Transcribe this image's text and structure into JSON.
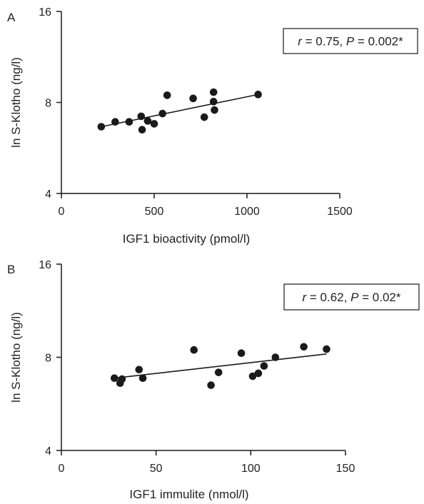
{
  "chart_data": [
    {
      "type": "scatter",
      "panel_label": "A",
      "xlabel": "IGF1 bioactivity (pmol/l)",
      "ylabel": "ln S-Klotho (ng/l)",
      "xlim": [
        0,
        1500
      ],
      "ylim": [
        4,
        16
      ],
      "yscale": "log2",
      "xticks": [
        0,
        500,
        1000,
        1500
      ],
      "xtick_labels": [
        "0",
        "500",
        "1000",
        "1500"
      ],
      "yticks": [
        4,
        8,
        16
      ],
      "ytick_labels": [
        "4",
        "8",
        "16"
      ],
      "annotation": {
        "r_sym": "r",
        "r_rest": " = 0.75, ",
        "p_sym": "P",
        "p_rest": " = 0.002*"
      },
      "grid": false,
      "points": [
        {
          "x": 215,
          "y": 6.65
        },
        {
          "x": 290,
          "y": 6.9
        },
        {
          "x": 365,
          "y": 6.9
        },
        {
          "x": 430,
          "y": 7.2
        },
        {
          "x": 435,
          "y": 6.5
        },
        {
          "x": 465,
          "y": 6.95
        },
        {
          "x": 500,
          "y": 6.8
        },
        {
          "x": 545,
          "y": 7.35
        },
        {
          "x": 570,
          "y": 8.45
        },
        {
          "x": 710,
          "y": 8.25
        },
        {
          "x": 770,
          "y": 7.15
        },
        {
          "x": 820,
          "y": 8.65
        },
        {
          "x": 820,
          "y": 8.05
        },
        {
          "x": 825,
          "y": 7.55
        },
        {
          "x": 1060,
          "y": 8.5
        }
      ],
      "fit_line": {
        "x": [
          215,
          1060
        ],
        "y": [
          6.65,
          8.5
        ]
      }
    },
    {
      "type": "scatter",
      "panel_label": "B",
      "xlabel": "IGF1 immulite (nmol/l)",
      "ylabel": "ln S-Klotho (ng/l)",
      "xlim": [
        0,
        150
      ],
      "ylim": [
        4,
        16
      ],
      "yscale": "log2",
      "xticks": [
        0,
        50,
        100,
        150
      ],
      "xtick_labels": [
        "0",
        "50",
        "100",
        "150"
      ],
      "yticks": [
        4,
        8,
        16
      ],
      "ytick_labels": [
        "4",
        "8",
        "16"
      ],
      "annotation": {
        "r_sym": "r",
        "r_rest": " = 0.62, ",
        "p_sym": "P",
        "p_rest": " = 0.02*"
      },
      "grid": false,
      "points": [
        {
          "x": 28,
          "y": 6.85
        },
        {
          "x": 31,
          "y": 6.6
        },
        {
          "x": 32,
          "y": 6.8
        },
        {
          "x": 41,
          "y": 7.3
        },
        {
          "x": 43,
          "y": 6.85
        },
        {
          "x": 70,
          "y": 8.45
        },
        {
          "x": 79,
          "y": 6.5
        },
        {
          "x": 83,
          "y": 7.15
        },
        {
          "x": 95,
          "y": 8.25
        },
        {
          "x": 101,
          "y": 6.95
        },
        {
          "x": 104,
          "y": 7.1
        },
        {
          "x": 107,
          "y": 7.5
        },
        {
          "x": 113,
          "y": 8.0
        },
        {
          "x": 128,
          "y": 8.65
        },
        {
          "x": 140,
          "y": 8.5
        }
      ],
      "fit_line": {
        "x": [
          28,
          140
        ],
        "y": [
          6.85,
          8.2
        ]
      }
    }
  ],
  "colors": {
    "marker": "#1a1a1a",
    "axis": "#1a1a1a",
    "text": "#222222",
    "background": "#ffffff"
  }
}
